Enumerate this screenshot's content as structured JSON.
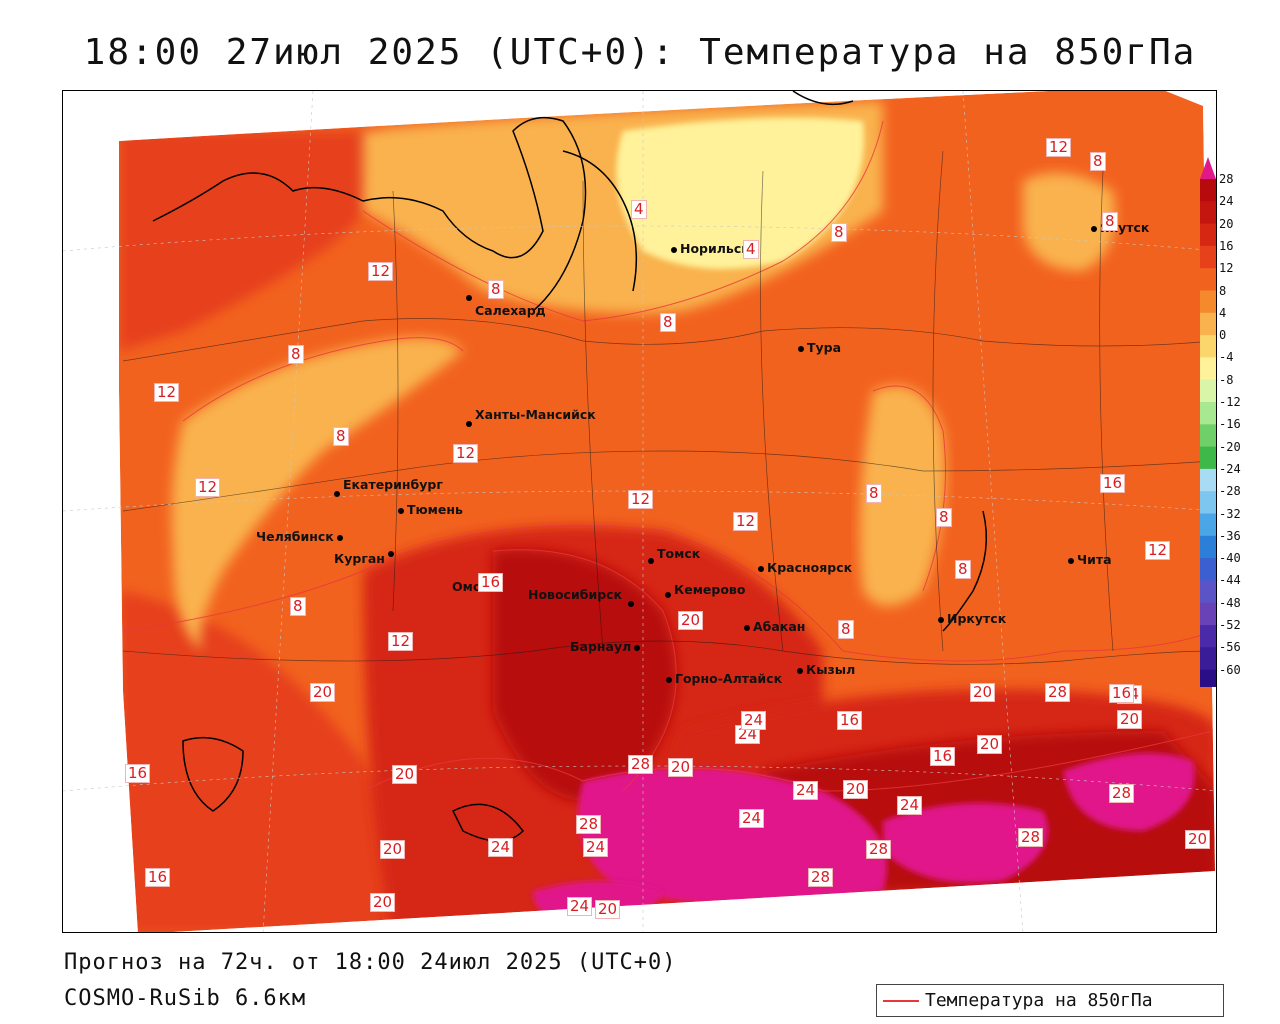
{
  "title": "18:00 27июл 2025 (UTC+0): Температура на 850гПа",
  "footer": {
    "forecast": "Прогноз на 72ч. от 18:00 24июл 2025 (UTC+0)",
    "model": "COSMO-RuSib 6.6км"
  },
  "legend": {
    "label": "Температура на 850гПа",
    "line_color": "#e8373a"
  },
  "colorbar": {
    "ticks": [
      "28",
      "24",
      "20",
      "16",
      "12",
      "8",
      "4",
      "0",
      "-4",
      "-8",
      "-12",
      "-16",
      "-20",
      "-24",
      "-28",
      "-32",
      "-36",
      "-40",
      "-44",
      "-48",
      "-52",
      "-56",
      "-60"
    ],
    "colors": [
      "#b70a0d",
      "#c4160f",
      "#d62713",
      "#e6411a",
      "#f2621f",
      "#f58a2c",
      "#f9b24d",
      "#fbd66c",
      "#fff29a",
      "#d8f5a8",
      "#a8e890",
      "#6fd06a",
      "#3fb84a",
      "#a8dcf5",
      "#7cc6f0",
      "#4aa6e6",
      "#2b7fd8",
      "#3b5fd0",
      "#5a54c6",
      "#6a42b8",
      "#4a2aa8",
      "#3a1c98",
      "#2a0e88"
    ],
    "top_color": "#e0188a",
    "bottom_color": "#9b1fb0"
  },
  "cities": [
    {
      "name": "Норильск"
    },
    {
      "name": "Якутск"
    },
    {
      "name": "Салехард"
    },
    {
      "name": "Тура"
    },
    {
      "name": "Ханты-Мансийск"
    },
    {
      "name": "Екатеринбург"
    },
    {
      "name": "Тюмень"
    },
    {
      "name": "Челябинск"
    },
    {
      "name": "Курган"
    },
    {
      "name": "Омск"
    },
    {
      "name": "Новосибирск"
    },
    {
      "name": "Томск"
    },
    {
      "name": "Кемерово"
    },
    {
      "name": "Красноярск"
    },
    {
      "name": "Абакан"
    },
    {
      "name": "Барнаул"
    },
    {
      "name": "Горно-Алтайск"
    },
    {
      "name": "Кызыл"
    },
    {
      "name": "Иркутск"
    },
    {
      "name": "Чита"
    }
  ],
  "isotherm_labels": [
    "12",
    "8",
    "8",
    "8",
    "12",
    "8",
    "4",
    "4",
    "8",
    "12",
    "8",
    "8",
    "12",
    "12",
    "12",
    "8",
    "12",
    "8",
    "8",
    "16",
    "12",
    "8",
    "8",
    "12",
    "16",
    "16",
    "16",
    "20",
    "24",
    "20",
    "20",
    "24",
    "28",
    "20",
    "16",
    "20",
    "24",
    "20",
    "20",
    "16",
    "20",
    "24",
    "24",
    "28",
    "24",
    "28",
    "24",
    "28",
    "20",
    "28",
    "28",
    "24",
    "20",
    "24",
    "28",
    "16",
    "20",
    "20"
  ],
  "colors": {
    "map_base": "#f2621f",
    "warm": "#d62713",
    "hot": "#b70a0d",
    "extreme": "#e0188a",
    "cool": "#f9b24d",
    "cold": "#fff29a",
    "contour": "#e8373a"
  }
}
